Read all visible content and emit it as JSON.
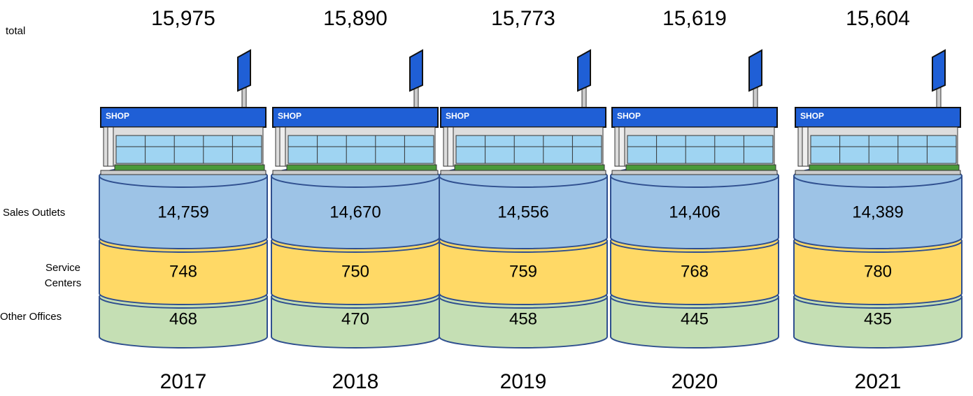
{
  "row_labels": {
    "total": "total",
    "sales": "Sales Outlets",
    "service": "Service Centers",
    "other": "Other Offices"
  },
  "shop_sign": "SHOP",
  "columns": [
    {
      "year": "2017",
      "total": "15,975",
      "sales": "14,759",
      "service": "748",
      "other": "468"
    },
    {
      "year": "2018",
      "total": "15,890",
      "sales": "14,670",
      "service": "750",
      "other": "470"
    },
    {
      "year": "2019",
      "total": "15,773",
      "sales": "14,556",
      "service": "759",
      "other": "458"
    },
    {
      "year": "2020",
      "total": "15,619",
      "sales": "14,406",
      "service": "768",
      "other": "445"
    },
    {
      "year": "2021",
      "total": "15,604",
      "sales": "14,389",
      "service": "780",
      "other": "435"
    }
  ]
}
